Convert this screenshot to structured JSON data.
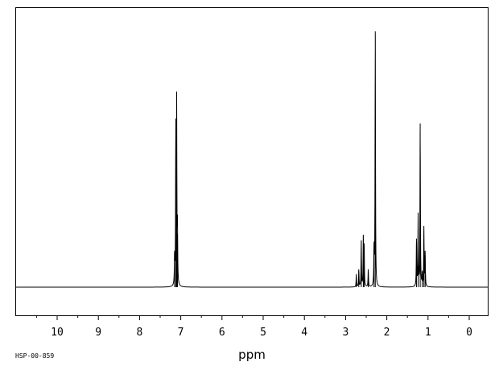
{
  "chart_data": {
    "type": "line",
    "title": "",
    "xlabel": "ppm",
    "ylabel": "",
    "xlim": [
      11.0,
      -0.5
    ],
    "x_reversed": true,
    "ylim": [
      -0.12,
      1.0
    ],
    "grid": false,
    "x_ticks": [
      10,
      9,
      8,
      7,
      6,
      5,
      4,
      3,
      2,
      1,
      0
    ],
    "x_tick_labels": [
      "10",
      "9",
      "8",
      "7",
      "6",
      "5",
      "4",
      "3",
      "2",
      "1",
      "0"
    ],
    "peaks": [
      {
        "x": 7.15,
        "y": 0.12
      },
      {
        "x": 7.12,
        "y": 0.61
      },
      {
        "x": 7.1,
        "y": 0.7
      },
      {
        "x": 7.08,
        "y": 0.21
      },
      {
        "x": 2.74,
        "y": 0.05
      },
      {
        "x": 2.68,
        "y": 0.07
      },
      {
        "x": 2.62,
        "y": 0.18
      },
      {
        "x": 2.57,
        "y": 0.2
      },
      {
        "x": 2.55,
        "y": 0.17
      },
      {
        "x": 2.45,
        "y": 0.07
      },
      {
        "x": 2.31,
        "y": 0.15
      },
      {
        "x": 2.28,
        "y": 1.0
      },
      {
        "x": 1.28,
        "y": 0.19
      },
      {
        "x": 1.24,
        "y": 0.28
      },
      {
        "x": 1.19,
        "y": 0.64
      },
      {
        "x": 1.14,
        "y": 0.05
      },
      {
        "x": 1.1,
        "y": 0.23
      },
      {
        "x": 1.07,
        "y": 0.14
      }
    ]
  },
  "sample_id": "HSP-00-859"
}
